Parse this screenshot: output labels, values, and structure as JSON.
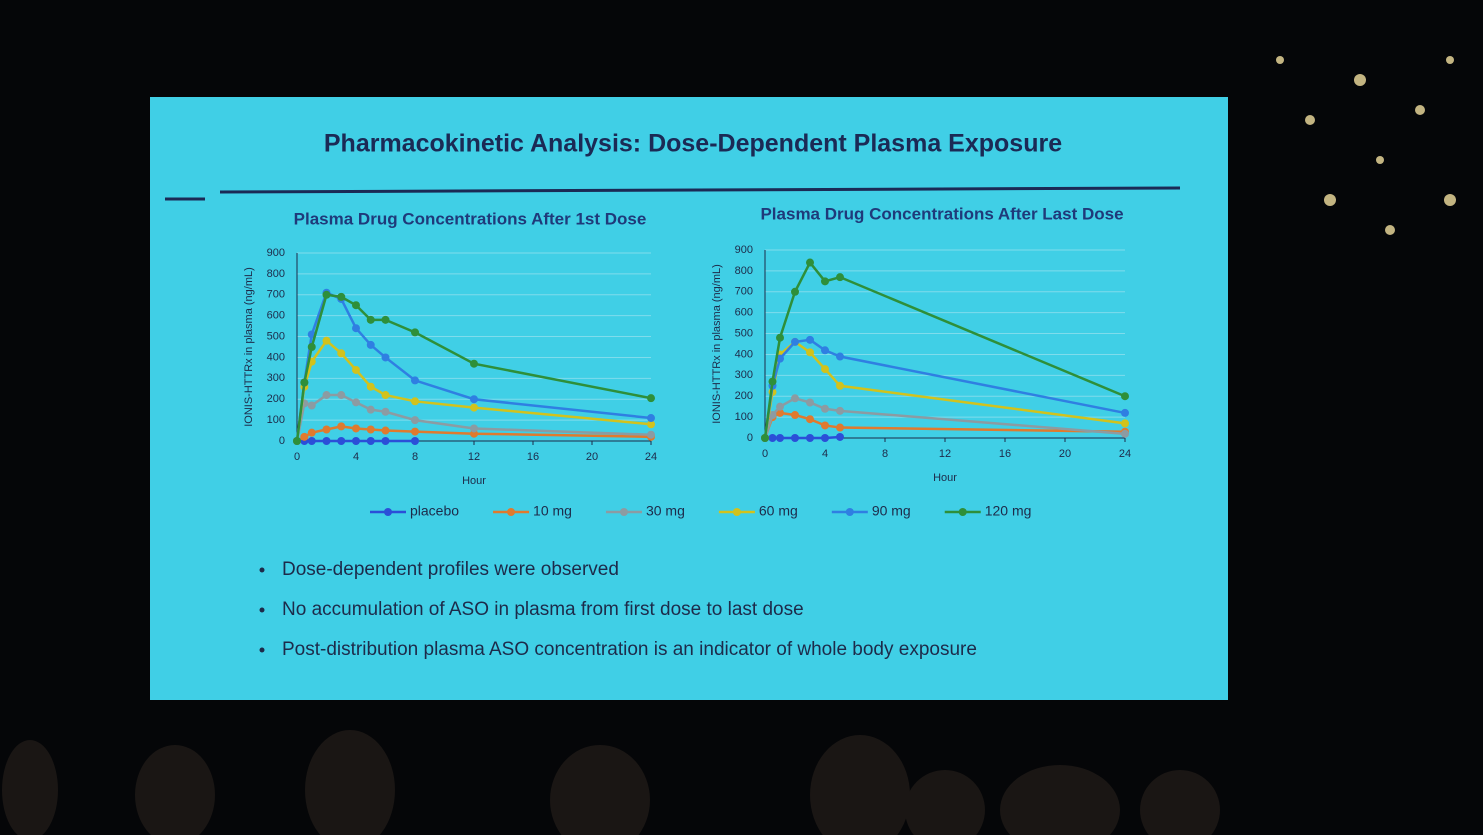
{
  "slide": {
    "title": "Pharmacokinetic Analysis:  Dose-Dependent Plasma Exposure",
    "bullets": [
      "Dose-dependent profiles were observed",
      "No accumulation of ASO in plasma from first dose to last dose",
      "Post-distribution plasma ASO concentration is an indicator of whole body exposure"
    ]
  },
  "chart_data": [
    {
      "type": "line",
      "title": "Plasma Drug Concentrations After 1st Dose",
      "x_label": "Hour",
      "y_label": "IONIS-HTTRx in plasma (ng/mL)",
      "x": [
        0,
        0.5,
        1,
        2,
        3,
        4,
        5,
        6,
        8,
        12,
        24
      ],
      "xlim": [
        0,
        24
      ],
      "xticks": [
        0,
        4,
        8,
        12,
        16,
        20,
        24
      ],
      "ylim": [
        0,
        900
      ],
      "yticks": [
        0,
        100,
        200,
        300,
        400,
        500,
        600,
        700,
        800,
        900
      ],
      "grid": true,
      "series": [
        {
          "name": "placebo",
          "color": "#2b4fd8",
          "values": [
            0,
            0,
            0,
            0,
            0,
            0,
            0,
            0,
            0,
            null,
            null
          ]
        },
        {
          "name": "10 mg",
          "color": "#e07a2e",
          "values": [
            0,
            20,
            40,
            55,
            70,
            60,
            55,
            50,
            45,
            35,
            20
          ]
        },
        {
          "name": "30 mg",
          "color": "#8c9ba2",
          "values": [
            0,
            180,
            170,
            220,
            220,
            185,
            150,
            140,
            100,
            60,
            30
          ]
        },
        {
          "name": "60 mg",
          "color": "#d2c21c",
          "values": [
            0,
            260,
            380,
            480,
            420,
            340,
            260,
            220,
            190,
            160,
            80
          ]
        },
        {
          "name": "90 mg",
          "color": "#2f7fe2",
          "values": [
            0,
            280,
            510,
            710,
            680,
            540,
            460,
            400,
            290,
            200,
            110
          ]
        },
        {
          "name": "120 mg",
          "color": "#2e8f3a",
          "values": [
            0,
            280,
            450,
            700,
            690,
            650,
            580,
            580,
            520,
            370,
            205
          ]
        }
      ]
    },
    {
      "type": "line",
      "title": "Plasma Drug Concentrations After Last Dose",
      "x_label": "Hour",
      "y_label": "IONIS-HTTRx in plasma (ng/mL)",
      "x": [
        0,
        0.5,
        1,
        2,
        3,
        4,
        5,
        24
      ],
      "xlim": [
        0,
        24
      ],
      "xticks": [
        0,
        4,
        8,
        12,
        16,
        20,
        24
      ],
      "ylim": [
        0,
        900
      ],
      "yticks": [
        0,
        100,
        200,
        300,
        400,
        500,
        600,
        700,
        800,
        900
      ],
      "grid": true,
      "series": [
        {
          "color": "#2b4fd8",
          "values": [
            0,
            0,
            0,
            0,
            0,
            0,
            5,
            null
          ]
        },
        {
          "color": "#e07a2e",
          "values": [
            0,
            100,
            120,
            110,
            90,
            60,
            50,
            30
          ]
        },
        {
          "color": "#8c9ba2",
          "values": [
            0,
            110,
            150,
            190,
            170,
            140,
            130,
            20
          ]
        },
        {
          "color": "#d2c21c",
          "values": [
            0,
            220,
            400,
            460,
            410,
            330,
            250,
            70
          ]
        },
        {
          "color": "#2f7fe2",
          "values": [
            0,
            250,
            380,
            460,
            470,
            420,
            390,
            120
          ]
        },
        {
          "color": "#2e8f3a",
          "values": [
            0,
            270,
            480,
            700,
            840,
            750,
            770,
            200
          ]
        }
      ]
    }
  ]
}
